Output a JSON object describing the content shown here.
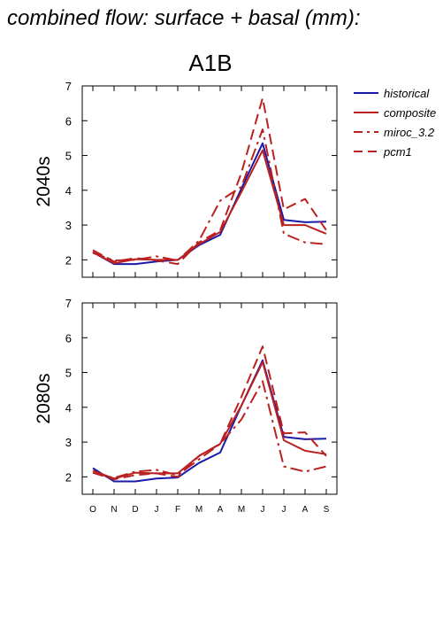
{
  "title": "combined flow: surface + basal (mm):",
  "scenario": "A1B",
  "colors": {
    "historical": "#1a1aa8",
    "composite": "#bb2020",
    "miroc_3.2": "#bb2020",
    "pcm1": "#bb2020"
  },
  "legend": [
    {
      "name": "historical",
      "style": "solid",
      "color": "#1a1aa8"
    },
    {
      "name": "composite",
      "style": "solid",
      "color": "#bb2020"
    },
    {
      "name": "miroc_3.2",
      "style": "dashdot",
      "color": "#bb2020"
    },
    {
      "name": "pcm1",
      "style": "dashed",
      "color": "#bb2020"
    }
  ],
  "chart_data": [
    {
      "type": "line",
      "panel": "2040s",
      "categories": [
        "O",
        "N",
        "D",
        "J",
        "F",
        "M",
        "A",
        "M",
        "J",
        "J",
        "A",
        "S"
      ],
      "ylim": [
        1.5,
        7
      ],
      "yticks": [
        2,
        3,
        4,
        5,
        6,
        7
      ],
      "series": [
        {
          "name": "historical",
          "values": [
            2.22,
            1.88,
            1.88,
            1.95,
            2.0,
            2.42,
            2.72,
            4.05,
            5.35,
            3.15,
            3.08,
            3.1
          ]
        },
        {
          "name": "composite",
          "values": [
            2.22,
            1.9,
            2.02,
            2.0,
            2.0,
            2.45,
            2.8,
            3.95,
            5.15,
            3.0,
            3.0,
            2.75
          ]
        },
        {
          "name": "miroc_3.2",
          "values": [
            2.2,
            1.98,
            2.0,
            2.1,
            1.98,
            2.55,
            3.7,
            4.1,
            5.75,
            2.75,
            2.5,
            2.45
          ]
        },
        {
          "name": "pcm1",
          "values": [
            2.28,
            1.95,
            2.05,
            1.98,
            1.88,
            2.5,
            2.85,
            4.5,
            6.65,
            3.45,
            3.75,
            2.85
          ]
        }
      ]
    },
    {
      "type": "line",
      "panel": "2080s",
      "categories": [
        "O",
        "N",
        "D",
        "J",
        "F",
        "M",
        "A",
        "M",
        "J",
        "J",
        "A",
        "S"
      ],
      "ylim": [
        1.5,
        7
      ],
      "yticks": [
        2,
        3,
        4,
        5,
        6,
        7
      ],
      "series": [
        {
          "name": "historical",
          "values": [
            2.25,
            1.87,
            1.87,
            1.95,
            1.98,
            2.4,
            2.7,
            4.05,
            5.35,
            3.15,
            3.08,
            3.1
          ]
        },
        {
          "name": "composite",
          "values": [
            2.18,
            1.95,
            2.12,
            2.1,
            2.1,
            2.6,
            2.95,
            4.05,
            5.3,
            3.05,
            2.75,
            2.65
          ]
        },
        {
          "name": "miroc_3.2",
          "values": [
            2.12,
            1.97,
            2.15,
            2.2,
            2.05,
            2.5,
            2.95,
            3.65,
            4.75,
            2.3,
            2.15,
            2.3
          ]
        },
        {
          "name": "pcm1",
          "values": [
            2.12,
            1.93,
            2.05,
            2.1,
            2.0,
            2.6,
            2.95,
            4.3,
            5.75,
            3.25,
            3.28,
            2.6
          ]
        }
      ]
    }
  ]
}
